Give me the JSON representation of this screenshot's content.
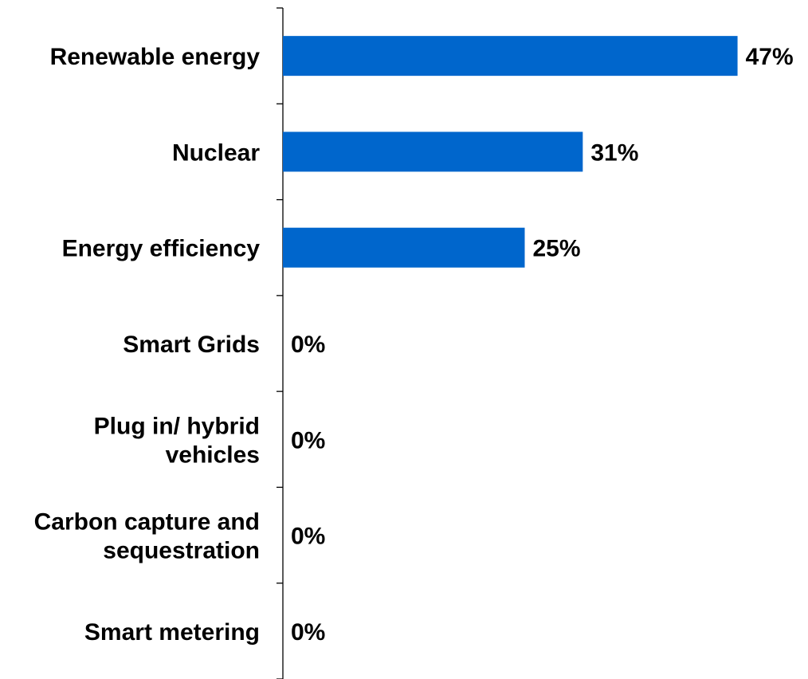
{
  "chart_data": {
    "type": "hbar",
    "categories": [
      "Renewable energy",
      "Nuclear",
      "Energy efficiency",
      "Smart Grids",
      "Plug in/ hybrid vehicles",
      "Carbon capture and sequestration",
      "Smart metering"
    ],
    "values": [
      47,
      31,
      25,
      0,
      0,
      0,
      0
    ],
    "value_labels": [
      "47%",
      "31%",
      "25%",
      "0%",
      "0%",
      "0%",
      "0%"
    ],
    "color": "#0066cc",
    "xlim": [
      0,
      50
    ]
  }
}
